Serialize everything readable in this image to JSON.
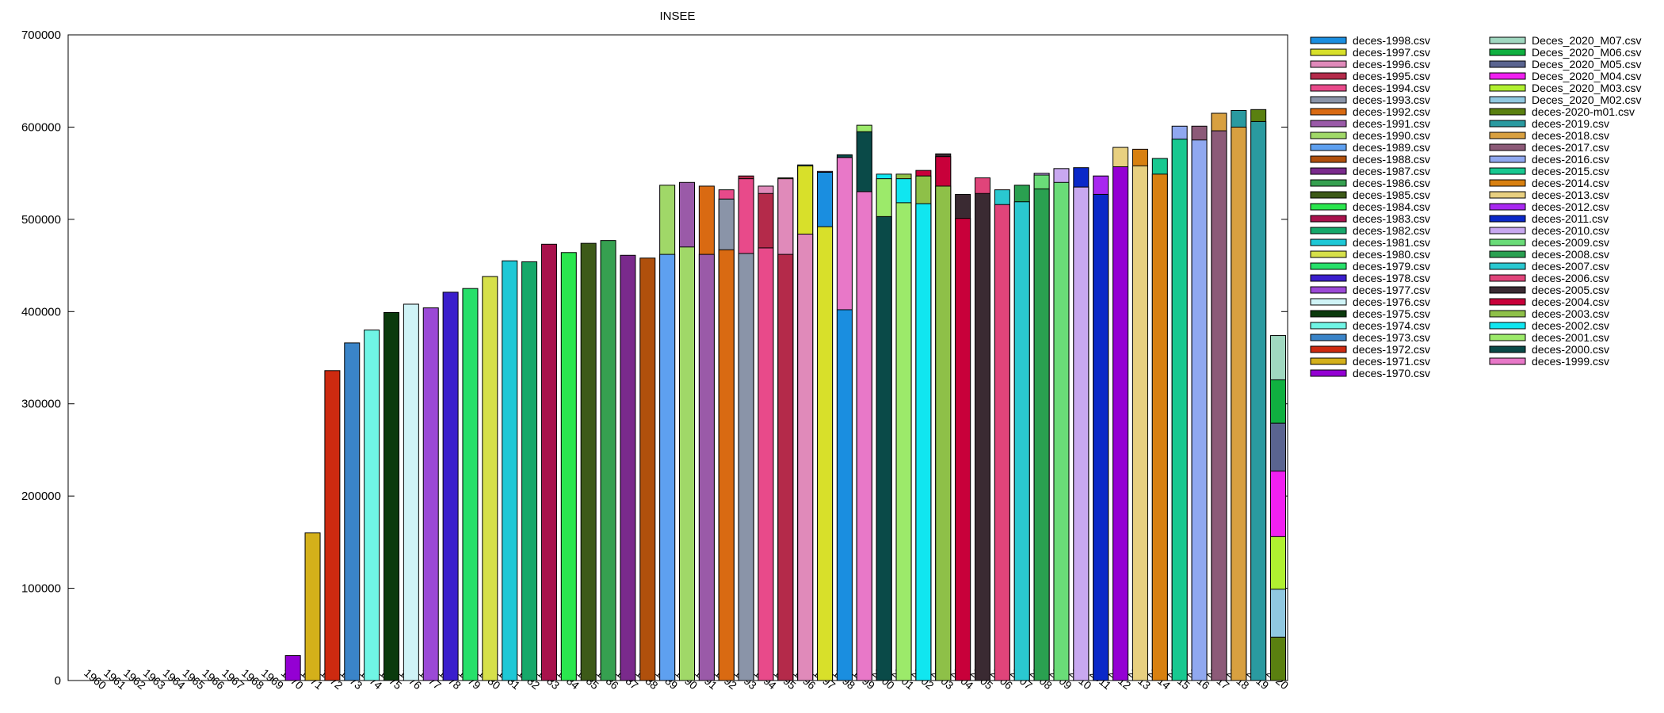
{
  "chart_data": {
    "type": "bar",
    "stacked": true,
    "title": "INSEE",
    "xlabel": "",
    "ylabel": "",
    "ylim": [
      0,
      700000
    ],
    "yticks": [
      0,
      100000,
      200000,
      300000,
      400000,
      500000,
      600000,
      700000
    ],
    "grid": false,
    "legend_position": "right",
    "years": [
      "1960",
      "1961",
      "1962",
      "1963",
      "1964",
      "1965",
      "1966",
      "1967",
      "1968",
      "1969",
      "1970",
      "1971",
      "1972",
      "1973",
      "1974",
      "1975",
      "1976",
      "1977",
      "1978",
      "1979",
      "1980",
      "1981",
      "1982",
      "1983",
      "1984",
      "1985",
      "1986",
      "1987",
      "1988",
      "1989",
      "1990",
      "1991",
      "1992",
      "1993",
      "1994",
      "1995",
      "1996",
      "1997",
      "1998",
      "1999",
      "2000",
      "2001",
      "2002",
      "2003",
      "2004",
      "2005",
      "2006",
      "2007",
      "2008",
      "2009",
      "2010",
      "2011",
      "2012",
      "2013",
      "2014",
      "2015",
      "2016",
      "2017",
      "2018",
      "2019",
      "2020"
    ],
    "series": [
      {
        "name": "deces-1970.csv",
        "color": "#9400d3",
        "values": {
          "1970": 27000,
          "2012": 557000
        }
      },
      {
        "name": "deces-1971.csv",
        "color": "#d4b01a",
        "values": {
          "1971": 160000
        }
      },
      {
        "name": "deces-1972.csv",
        "color": "#cd2a10",
        "values": {
          "1972": 336000
        }
      },
      {
        "name": "deces-1973.csv",
        "color": "#3a84c8",
        "values": {
          "1973": 366000
        }
      },
      {
        "name": "deces-1974.csv",
        "color": "#70f5e5",
        "values": {
          "1974": 380000
        }
      },
      {
        "name": "deces-1975.csv",
        "color": "#0b3a0d",
        "values": {
          "1975": 399000
        }
      },
      {
        "name": "deces-1976.csv",
        "color": "#cff3f6",
        "values": {
          "1976": 408000
        }
      },
      {
        "name": "deces-1977.csv",
        "color": "#9b49d6",
        "values": {
          "1977": 404000
        }
      },
      {
        "name": "deces-1978.csv",
        "color": "#3a1ecc",
        "values": {
          "1978": 421000
        }
      },
      {
        "name": "deces-1979.csv",
        "color": "#27e06a",
        "values": {
          "1979": 425000
        }
      },
      {
        "name": "deces-1980.csv",
        "color": "#d6e04a",
        "values": {
          "1980": 438000
        }
      },
      {
        "name": "deces-1981.csv",
        "color": "#1ec8d6",
        "values": {
          "1981": 455000
        }
      },
      {
        "name": "deces-1982.csv",
        "color": "#16a86a",
        "values": {
          "1982": 454000
        }
      },
      {
        "name": "deces-1983.csv",
        "color": "#a8124c",
        "values": {
          "1983": 473000
        }
      },
      {
        "name": "deces-1984.csv",
        "color": "#2ae64e",
        "values": {
          "1984": 464000
        }
      },
      {
        "name": "deces-1985.csv",
        "color": "#3d5a18",
        "values": {
          "1985": 474000
        }
      },
      {
        "name": "deces-1986.csv",
        "color": "#36a050",
        "values": {
          "1986": 477000
        }
      },
      {
        "name": "deces-1987.csv",
        "color": "#7a2a8c",
        "values": {
          "1987": 461000
        }
      },
      {
        "name": "deces-1988.csv",
        "color": "#b0500c",
        "values": {
          "1988": 458000
        }
      },
      {
        "name": "deces-1989.csv",
        "color": "#5ea0f0",
        "values": {
          "1989": 462000
        }
      },
      {
        "name": "deces-1990.csv",
        "color": "#a0d868",
        "values": {
          "1989": 537000,
          "1990": 470000
        }
      },
      {
        "name": "deces-1991.csv",
        "color": "#9a5aa8",
        "values": {
          "1990": 540000,
          "1991": 462000
        }
      },
      {
        "name": "deces-1992.csv",
        "color": "#d96a12",
        "values": {
          "1991": 536000,
          "1992": 467000
        }
      },
      {
        "name": "deces-1993.csv",
        "color": "#8a94a8",
        "values": {
          "1992": 522000,
          "1993": 463000
        }
      },
      {
        "name": "deces-1994.csv",
        "color": "#e84a8a",
        "values": {
          "1992": 532000,
          "1993": 544000,
          "1994": 469000
        }
      },
      {
        "name": "deces-1995.csv",
        "color": "#b42a4a",
        "values": {
          "1993": 547000,
          "1994": 528000,
          "1995": 462000
        }
      },
      {
        "name": "deces-1996.csv",
        "color": "#e08aba",
        "values": {
          "1994": 536000,
          "1995": 544000,
          "1996": 484000
        }
      },
      {
        "name": "deces-1997.csv",
        "color": "#d8e02a",
        "values": {
          "1995": 545000,
          "1996": 558000,
          "1997": 492000
        }
      },
      {
        "name": "deces-1998.csv",
        "color": "#1a8ee0",
        "values": {
          "1996": 559000,
          "1997": 551000,
          "1998": 402000
        }
      },
      {
        "name": "deces-1999.csv",
        "color": "#e878c8",
        "values": {
          "1997": 552000,
          "1998": 567000,
          "1999": 530000
        }
      },
      {
        "name": "deces-2000.csv",
        "color": "#0a4a48",
        "values": {
          "1998": 570000,
          "1999": 595000,
          "2000": 503000
        }
      },
      {
        "name": "deces-2001.csv",
        "color": "#9cea6a",
        "values": {
          "1999": 602000,
          "2000": 544000,
          "2001": 518000
        }
      },
      {
        "name": "deces-2002.csv",
        "color": "#10e6f0",
        "values": {
          "2000": 549000,
          "2001": 544000,
          "2002": 517000
        }
      },
      {
        "name": "deces-2003.csv",
        "color": "#8ec048",
        "values": {
          "2001": 549000,
          "2002": 547000,
          "2003": 536000
        }
      },
      {
        "name": "deces-2004.csv",
        "color": "#c8003a",
        "values": {
          "2002": 553000,
          "2003": 568000,
          "2004": 501000
        }
      },
      {
        "name": "deces-2005.csv",
        "color": "#3a2a32",
        "values": {
          "2003": 571000,
          "2004": 527000,
          "2005": 528000
        }
      },
      {
        "name": "deces-2006.csv",
        "color": "#e0447a",
        "values": {
          "2005": 545000,
          "2006": 516000
        }
      },
      {
        "name": "deces-2007.csv",
        "color": "#2ac8d0",
        "values": {
          "2006": 532000,
          "2007": 519000
        }
      },
      {
        "name": "deces-2008.csv",
        "color": "#2aa050",
        "values": {
          "2007": 537000,
          "2008": 533000
        }
      },
      {
        "name": "deces-2009.csv",
        "color": "#6adc78",
        "values": {
          "2008": 548000,
          "2009": 540000
        }
      },
      {
        "name": "deces-2010.csv",
        "color": "#c8a8f0",
        "values": {
          "2008": 550000,
          "2009": 555000,
          "2010": 535000
        }
      },
      {
        "name": "deces-2011.csv",
        "color": "#0a28c8",
        "values": {
          "2010": 556000,
          "2011": 527000
        }
      },
      {
        "name": "deces-2012.csv",
        "color": "#a828f0",
        "values": {
          "2011": 547000
        }
      },
      {
        "name": "deces-2013.csv",
        "color": "#e8d080",
        "values": {
          "2012": 578000,
          "2013": 558000
        }
      },
      {
        "name": "deces-2014.csv",
        "color": "#d88010",
        "values": {
          "2013": 576000,
          "2014": 549000
        }
      },
      {
        "name": "deces-2015.csv",
        "color": "#18c890",
        "values": {
          "2014": 566000,
          "2015": 587000
        }
      },
      {
        "name": "deces-2016.csv",
        "color": "#90a8f0",
        "values": {
          "2015": 601000,
          "2016": 586000
        }
      },
      {
        "name": "deces-2017.csv",
        "color": "#8c5a78",
        "values": {
          "2016": 601000,
          "2017": 596000
        }
      },
      {
        "name": "deces-2018.csv",
        "color": "#d8a040",
        "values": {
          "2017": 615000,
          "2018": 600000
        }
      },
      {
        "name": "deces-2019.csv",
        "color": "#2a9aa0",
        "values": {
          "2018": 618000,
          "2019": 606000
        }
      },
      {
        "name": "deces-2020-m01.csv",
        "color": "#5a8010",
        "values": {
          "2019": 619000,
          "2020": 47000
        }
      },
      {
        "name": "Deces_2020_M02.csv",
        "color": "#90c8e0",
        "values": {
          "2020": 99000
        }
      },
      {
        "name": "Deces_2020_M03.csv",
        "color": "#b0f030",
        "values": {
          "2020": 156000
        }
      },
      {
        "name": "Deces_2020_M04.csv",
        "color": "#f020f0",
        "values": {
          "2020": 227000
        }
      },
      {
        "name": "Deces_2020_M05.csv",
        "color": "#5a6490",
        "values": {
          "2020": 279000
        }
      },
      {
        "name": "Deces_2020_M06.csv",
        "color": "#10b040",
        "values": {
          "2020": 326000
        }
      },
      {
        "name": "Deces_2020_M07.csv",
        "color": "#a0d8c0",
        "values": {
          "2020": 374000
        }
      }
    ],
    "legend_col1": [
      "deces-1998.csv",
      "deces-1997.csv",
      "deces-1996.csv",
      "deces-1995.csv",
      "deces-1994.csv",
      "deces-1993.csv",
      "deces-1992.csv",
      "deces-1991.csv",
      "deces-1990.csv",
      "deces-1989.csv",
      "deces-1988.csv",
      "deces-1987.csv",
      "deces-1986.csv",
      "deces-1985.csv",
      "deces-1984.csv",
      "deces-1983.csv",
      "deces-1982.csv",
      "deces-1981.csv",
      "deces-1980.csv",
      "deces-1979.csv",
      "deces-1978.csv",
      "deces-1977.csv",
      "deces-1976.csv",
      "deces-1975.csv",
      "deces-1974.csv",
      "deces-1973.csv",
      "deces-1972.csv",
      "deces-1971.csv",
      "deces-1970.csv"
    ],
    "legend_col2": [
      "Deces_2020_M07.csv",
      "Deces_2020_M06.csv",
      "Deces_2020_M05.csv",
      "Deces_2020_M04.csv",
      "Deces_2020_M03.csv",
      "Deces_2020_M02.csv",
      "deces-2020-m01.csv",
      "deces-2019.csv",
      "deces-2018.csv",
      "deces-2017.csv",
      "deces-2016.csv",
      "deces-2015.csv",
      "deces-2014.csv",
      "deces-2013.csv",
      "deces-2012.csv",
      "deces-2011.csv",
      "deces-2010.csv",
      "deces-2009.csv",
      "deces-2008.csv",
      "deces-2007.csv",
      "deces-2006.csv",
      "deces-2005.csv",
      "deces-2004.csv",
      "deces-2003.csv",
      "deces-2002.csv",
      "deces-2001.csv",
      "deces-2000.csv",
      "deces-1999.csv"
    ]
  }
}
